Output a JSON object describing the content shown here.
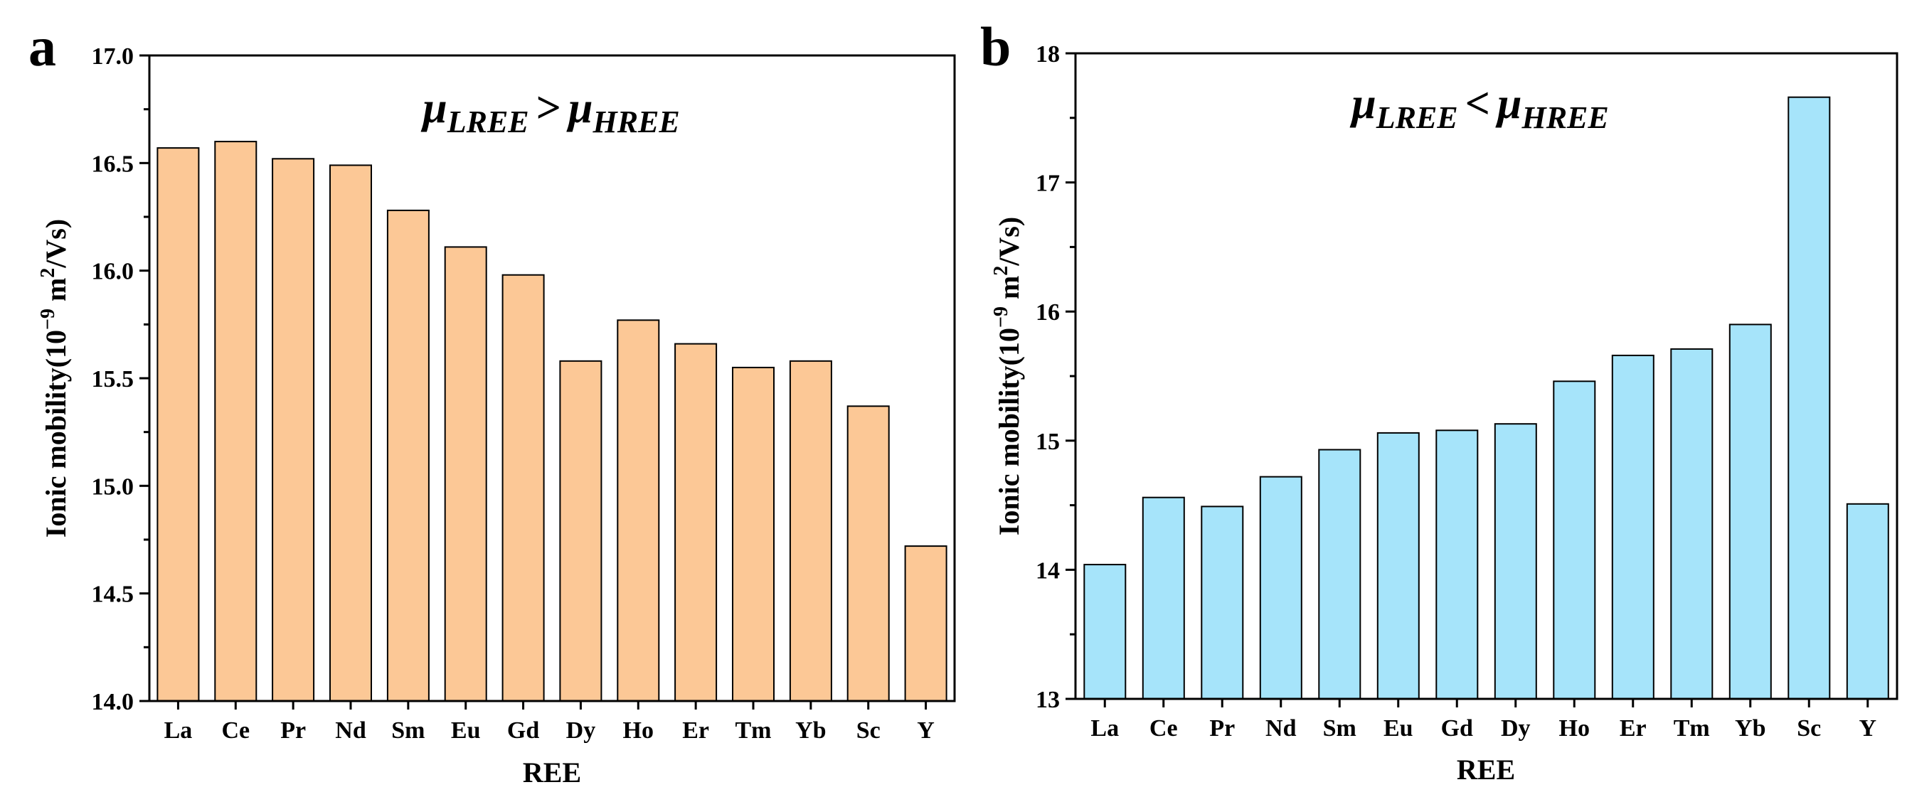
{
  "chart_data": [
    {
      "type": "bar",
      "panel_label": "a",
      "annotation": {
        "mu": "μ",
        "left_sub": "LREE",
        "operator": ">",
        "right_sub": "HREE"
      },
      "xlabel": "REE",
      "ylabel": {
        "prefix": "Ionic mobility(10",
        "exponent": "−9",
        "middle": " m",
        "exponent2": "2",
        "suffix": "/Vs)"
      },
      "ylim": [
        14.0,
        17.0
      ],
      "yticks": [
        "14.0",
        "14.5",
        "15.0",
        "15.5",
        "16.0",
        "16.5",
        "17.0"
      ],
      "ytick_values": [
        14.0,
        14.5,
        15.0,
        15.5,
        16.0,
        16.5,
        17.0
      ],
      "categories": [
        "La",
        "Ce",
        "Pr",
        "Nd",
        "Sm",
        "Eu",
        "Gd",
        "Dy",
        "Ho",
        "Er",
        "Tm",
        "Yb",
        "Sc",
        "Y"
      ],
      "values": [
        16.57,
        16.6,
        16.52,
        16.49,
        16.28,
        16.11,
        15.98,
        15.58,
        15.77,
        15.66,
        15.55,
        15.58,
        15.37,
        14.72
      ],
      "bar_color": "#FCC896",
      "grid": false
    },
    {
      "type": "bar",
      "panel_label": "b",
      "annotation": {
        "mu": "μ",
        "left_sub": "LREE",
        "operator": "<",
        "right_sub": "HREE"
      },
      "xlabel": "REE",
      "ylabel": {
        "prefix": "Ionic mobility(10",
        "exponent": "−9",
        "middle": " m",
        "exponent2": "2",
        "suffix": "/Vs)"
      },
      "ylim": [
        13,
        18
      ],
      "yticks": [
        "13",
        "14",
        "15",
        "16",
        "17",
        "18"
      ],
      "ytick_values": [
        13,
        14,
        15,
        16,
        17,
        18
      ],
      "categories": [
        "La",
        "Ce",
        "Pr",
        "Nd",
        "Sm",
        "Eu",
        "Gd",
        "Dy",
        "Ho",
        "Er",
        "Tm",
        "Yb",
        "Sc",
        "Y"
      ],
      "values": [
        14.04,
        14.56,
        14.49,
        14.72,
        14.93,
        15.06,
        15.08,
        15.13,
        15.46,
        15.66,
        15.71,
        15.9,
        17.66,
        14.51
      ],
      "bar_color": "#A6E4FA",
      "grid": false
    }
  ]
}
